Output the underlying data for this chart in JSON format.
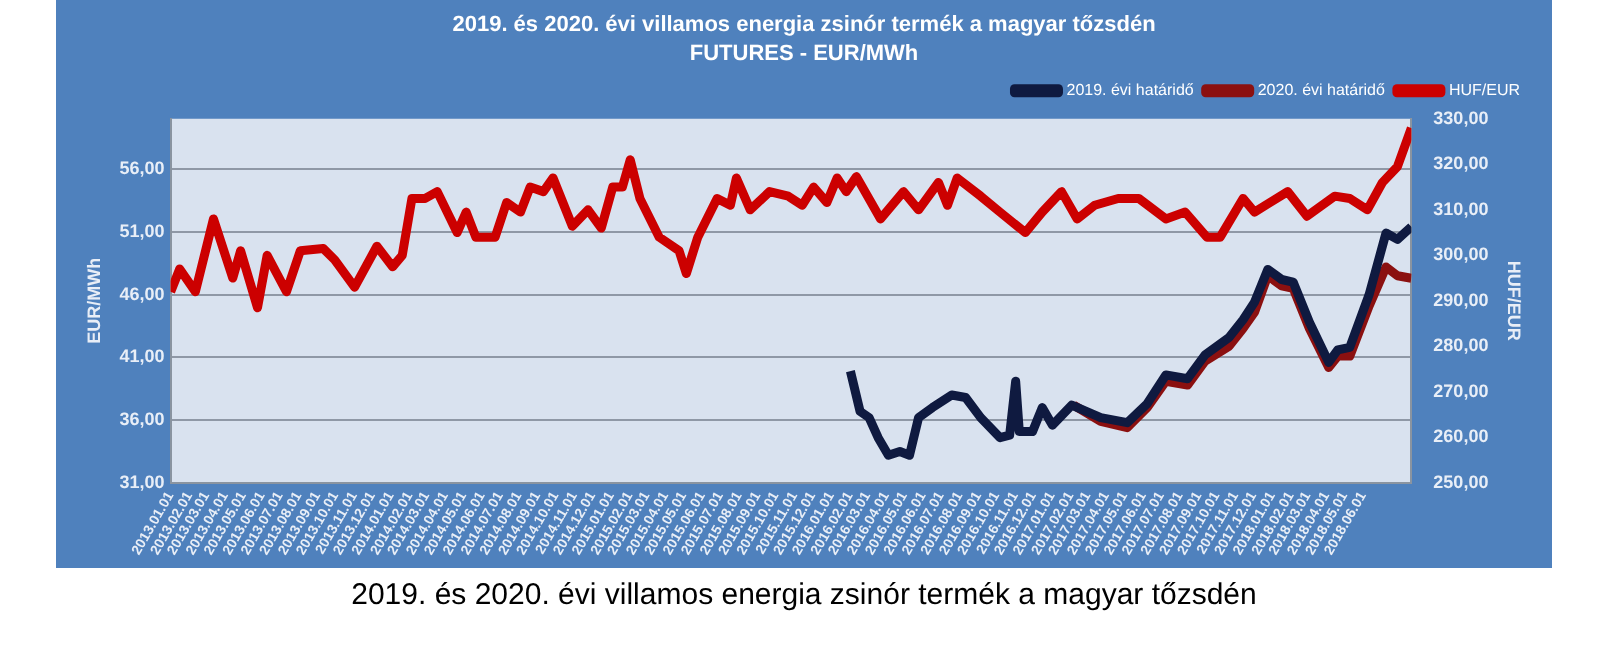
{
  "chart_data": {
    "type": "line",
    "title": "2019. és 2020. évi villamos energia zsinór termék a magyar tőzsdén",
    "subtitle": "FUTURES - EUR/MWh",
    "ylabel": "EUR/MWh",
    "y2label": "HUF/EUR",
    "annotations": [
      "2019. és 2020. évi villamos energia zsinór termék a magyar tőzsdén"
    ],
    "legend": "top right",
    "grid": "y",
    "xlim": [
      "2013-01-01",
      "2018-08-20"
    ],
    "xticks": [
      {
        "value": "2013-01-01",
        "label": "2013.01.01"
      },
      {
        "value": "2013-02-01",
        "label": "2013.02.01"
      },
      {
        "value": "2013-03-01",
        "label": "2013.03.01"
      },
      {
        "value": "2013-04-01",
        "label": "2013.04.01"
      },
      {
        "value": "2013-05-01",
        "label": "2013.05.01"
      },
      {
        "value": "2013-06-01",
        "label": "2013.06.01"
      },
      {
        "value": "2013-07-01",
        "label": "2013.07.01"
      },
      {
        "value": "2013-08-01",
        "label": "2013.08.01"
      },
      {
        "value": "2013-09-01",
        "label": "2013.09.01"
      },
      {
        "value": "2013-10-01",
        "label": "2013.10.01"
      },
      {
        "value": "2013-11-01",
        "label": "2013.11.01"
      },
      {
        "value": "2013-12-01",
        "label": "2013.12.01"
      },
      {
        "value": "2014-01-01",
        "label": "2014.01.01"
      },
      {
        "value": "2014-02-01",
        "label": "2014.02.01"
      },
      {
        "value": "2014-03-01",
        "label": "2014.03.01"
      },
      {
        "value": "2014-04-01",
        "label": "2014.04.01"
      },
      {
        "value": "2014-05-01",
        "label": "2014.05.01"
      },
      {
        "value": "2014-06-01",
        "label": "2014.06.01"
      },
      {
        "value": "2014-07-01",
        "label": "2014.07.01"
      },
      {
        "value": "2014-08-01",
        "label": "2014.08.01"
      },
      {
        "value": "2014-09-01",
        "label": "2014.09.01"
      },
      {
        "value": "2014-10-01",
        "label": "2014.10.01"
      },
      {
        "value": "2014-11-01",
        "label": "2014.11.01"
      },
      {
        "value": "2014-12-01",
        "label": "2014.12.01"
      },
      {
        "value": "2015-01-01",
        "label": "2015.01.01"
      },
      {
        "value": "2015-02-01",
        "label": "2015.02.01"
      },
      {
        "value": "2015-03-01",
        "label": "2015.03.01"
      },
      {
        "value": "2015-04-01",
        "label": "2015.04.01"
      },
      {
        "value": "2015-05-01",
        "label": "2015.05.01"
      },
      {
        "value": "2015-06-01",
        "label": "2015.06.01"
      },
      {
        "value": "2015-07-01",
        "label": "2015.07.01"
      },
      {
        "value": "2015-08-01",
        "label": "2015.08.01"
      },
      {
        "value": "2015-09-01",
        "label": "2015.09.01"
      },
      {
        "value": "2015-10-01",
        "label": "2015.10.01"
      },
      {
        "value": "2015-11-01",
        "label": "2015.11.01"
      },
      {
        "value": "2015-12-01",
        "label": "2015.12.01"
      },
      {
        "value": "2016-01-01",
        "label": "2016.01.01"
      },
      {
        "value": "2016-02-01",
        "label": "2016.02.01"
      },
      {
        "value": "2016-03-01",
        "label": "2016.03.01"
      },
      {
        "value": "2016-04-01",
        "label": "2016.04.01"
      },
      {
        "value": "2016-05-01",
        "label": "2016.05.01"
      },
      {
        "value": "2016-06-01",
        "label": "2016.06.01"
      },
      {
        "value": "2016-07-01",
        "label": "2016.07.01"
      },
      {
        "value": "2016-08-01",
        "label": "2016.08.01"
      },
      {
        "value": "2016-09-01",
        "label": "2016.09.01"
      },
      {
        "value": "2016-10-01",
        "label": "2016.10.01"
      },
      {
        "value": "2016-11-01",
        "label": "2016.11.01"
      },
      {
        "value": "2016-12-01",
        "label": "2016.12.01"
      },
      {
        "value": "2017-01-01",
        "label": "2017.01.01"
      },
      {
        "value": "2017-02-01",
        "label": "2017.02.01"
      },
      {
        "value": "2017-03-01",
        "label": "2017.03.01"
      },
      {
        "value": "2017-04-01",
        "label": "2017.04.01"
      },
      {
        "value": "2017-05-01",
        "label": "2017.05.01"
      },
      {
        "value": "2017-06-01",
        "label": "2017.06.01"
      },
      {
        "value": "2017-07-01",
        "label": "2017.07.01"
      },
      {
        "value": "2017-08-01",
        "label": "2017.08.01"
      },
      {
        "value": "2017-09-01",
        "label": "2017.09.01"
      },
      {
        "value": "2017-10-01",
        "label": "2017.10.01"
      },
      {
        "value": "2017-11-01",
        "label": "2017.11.01"
      },
      {
        "value": "2017-12-01",
        "label": "2017.12.01"
      },
      {
        "value": "2018-01-01",
        "label": "2018.01.01"
      },
      {
        "value": "2018-02-01",
        "label": "2018.02.01"
      },
      {
        "value": "2018-03-01",
        "label": "2018.03.01"
      },
      {
        "value": "2018-04-01",
        "label": "2018.04.01"
      },
      {
        "value": "2018-05-01",
        "label": "2018.05.01"
      },
      {
        "value": "2018-06-01",
        "label": "2018.06.01"
      }
    ],
    "ylim": [
      31,
      60
    ],
    "yticks": [
      {
        "value": 31,
        "label": "31,00"
      },
      {
        "value": 36,
        "label": "36,00"
      },
      {
        "value": 41,
        "label": "41,00"
      },
      {
        "value": 46,
        "label": "46,00"
      },
      {
        "value": 51,
        "label": "51,00"
      },
      {
        "value": 56,
        "label": "56,00"
      }
    ],
    "y2lim": [
      250,
      330
    ],
    "y2ticks": [
      {
        "value": 250,
        "label": "250,00"
      },
      {
        "value": 260,
        "label": "260,00"
      },
      {
        "value": 270,
        "label": "270,00"
      },
      {
        "value": 280,
        "label": "280,00"
      },
      {
        "value": 290,
        "label": "290,00"
      },
      {
        "value": 300,
        "label": "300,00"
      },
      {
        "value": 310,
        "label": "310,00"
      },
      {
        "value": 320,
        "label": "320,00"
      },
      {
        "value": 330,
        "label": "330,00"
      }
    ],
    "series": [
      {
        "name": "2019. évi határidő",
        "color": "#0f1a40",
        "x": [
          "2016-02-02",
          "2016-02-18",
          "2016-03-04",
          "2016-03-19",
          "2016-04-05",
          "2016-04-24",
          "2016-05-10",
          "2016-05-25",
          "2016-06-17",
          "2016-07-19",
          "2016-08-11",
          "2016-09-05",
          "2016-10-07",
          "2016-10-23",
          "2016-11-02",
          "2016-11-08",
          "2016-11-30",
          "2016-12-16",
          "2017-01-02",
          "2017-02-03",
          "2017-03-23",
          "2017-05-06",
          "2017-06-08",
          "2017-07-09",
          "2017-08-14",
          "2017-09-12",
          "2017-10-22",
          "2017-11-14",
          "2017-12-03",
          "2017-12-25",
          "2018-01-17",
          "2018-02-05",
          "2018-03-04",
          "2018-04-05",
          "2018-04-20",
          "2018-05-10",
          "2018-06-11",
          "2018-07-09",
          "2018-07-28",
          "2018-08-20"
        ],
        "values": [
          39.9,
          36.7,
          36.2,
          34.6,
          33.2,
          33.5,
          33.2,
          36.2,
          37.0,
          38.0,
          37.8,
          36.2,
          34.6,
          34.8,
          39.1,
          35.1,
          35.1,
          37.0,
          35.6,
          37.2,
          36.2,
          35.8,
          37.3,
          39.6,
          39.3,
          41.2,
          42.6,
          44.0,
          45.4,
          48.0,
          47.2,
          47.0,
          43.8,
          40.6,
          41.6,
          41.8,
          46.0,
          50.9,
          50.4,
          51.4
        ]
      },
      {
        "name": "2020. évi határidő",
        "color": "#8b1010",
        "x": [
          "2017-02-06",
          "2017-03-23",
          "2017-05-06",
          "2017-06-08",
          "2017-07-09",
          "2017-08-14",
          "2017-09-12",
          "2017-10-22",
          "2017-11-14",
          "2017-12-03",
          "2017-12-25",
          "2018-01-17",
          "2018-02-05",
          "2018-03-04",
          "2018-04-05",
          "2018-04-20",
          "2018-05-10",
          "2018-06-11",
          "2018-07-09",
          "2018-07-28",
          "2018-08-20"
        ],
        "values": [
          37.2,
          35.9,
          35.4,
          37.0,
          39.1,
          38.8,
          40.7,
          41.9,
          43.3,
          44.6,
          47.5,
          46.7,
          46.5,
          43.3,
          40.2,
          41.1,
          41.1,
          45.1,
          48.2,
          47.5,
          47.3
        ]
      },
      {
        "name": "HUF/EUR",
        "color": "#cc0000",
        "axis": "y2",
        "x": [
          "2013-01-01",
          "2013-01-16",
          "2013-02-11",
          "2013-03-13",
          "2013-04-14",
          "2013-04-27",
          "2013-05-25",
          "2013-06-10",
          "2013-07-12",
          "2013-08-04",
          "2013-09-11",
          "2013-09-30",
          "2013-11-02",
          "2013-12-09",
          "2014-01-04",
          "2014-01-20",
          "2014-02-05",
          "2014-02-27",
          "2014-03-19",
          "2014-04-21",
          "2014-05-06",
          "2014-05-22",
          "2014-06-23",
          "2014-07-12",
          "2014-08-04",
          "2014-08-20",
          "2014-09-11",
          "2014-09-27",
          "2014-10-29",
          "2014-11-24",
          "2014-12-16",
          "2015-01-04",
          "2015-01-20",
          "2015-02-02",
          "2015-02-18",
          "2015-03-22",
          "2015-04-24",
          "2015-05-06",
          "2015-05-25",
          "2015-06-26",
          "2015-07-18",
          "2015-07-28",
          "2015-08-20",
          "2015-09-21",
          "2015-10-22",
          "2015-11-14",
          "2015-12-03",
          "2015-12-25",
          "2016-01-11",
          "2016-01-26",
          "2016-02-12",
          "2016-03-23",
          "2016-04-30",
          "2016-05-25",
          "2016-06-27",
          "2016-07-12",
          "2016-07-28",
          "2016-09-05",
          "2016-10-07",
          "2016-11-18",
          "2016-12-16",
          "2017-01-17",
          "2017-02-12",
          "2017-03-13",
          "2017-04-21",
          "2017-05-25",
          "2017-07-09",
          "2017-08-10",
          "2017-09-15",
          "2017-10-07",
          "2017-11-14",
          "2017-12-03",
          "2018-01-27",
          "2018-02-28",
          "2018-04-15",
          "2018-05-10",
          "2018-06-08",
          "2018-07-03",
          "2018-07-28",
          "2018-08-20"
        ],
        "values": [
          292,
          297,
          292,
          308,
          295,
          301,
          288.5,
          300,
          292,
          301,
          301.5,
          299,
          293,
          302,
          297.5,
          300,
          312.5,
          312.5,
          314,
          305,
          309.5,
          304,
          304,
          311.6,
          309.5,
          315,
          314,
          317,
          306.4,
          310,
          306,
          315,
          315,
          321,
          312.5,
          304,
          301,
          296,
          304,
          312.5,
          311,
          317,
          310,
          314,
          313,
          311,
          315,
          311.6,
          317,
          314,
          317.3,
          308,
          314,
          310,
          316,
          311,
          317,
          313,
          309.5,
          305,
          309.5,
          314,
          308,
          311,
          312.5,
          312.5,
          308,
          309.5,
          304,
          304,
          312.5,
          309.5,
          314,
          308.6,
          313,
          312.5,
          310,
          316,
          319.5,
          328
        ]
      }
    ]
  }
}
